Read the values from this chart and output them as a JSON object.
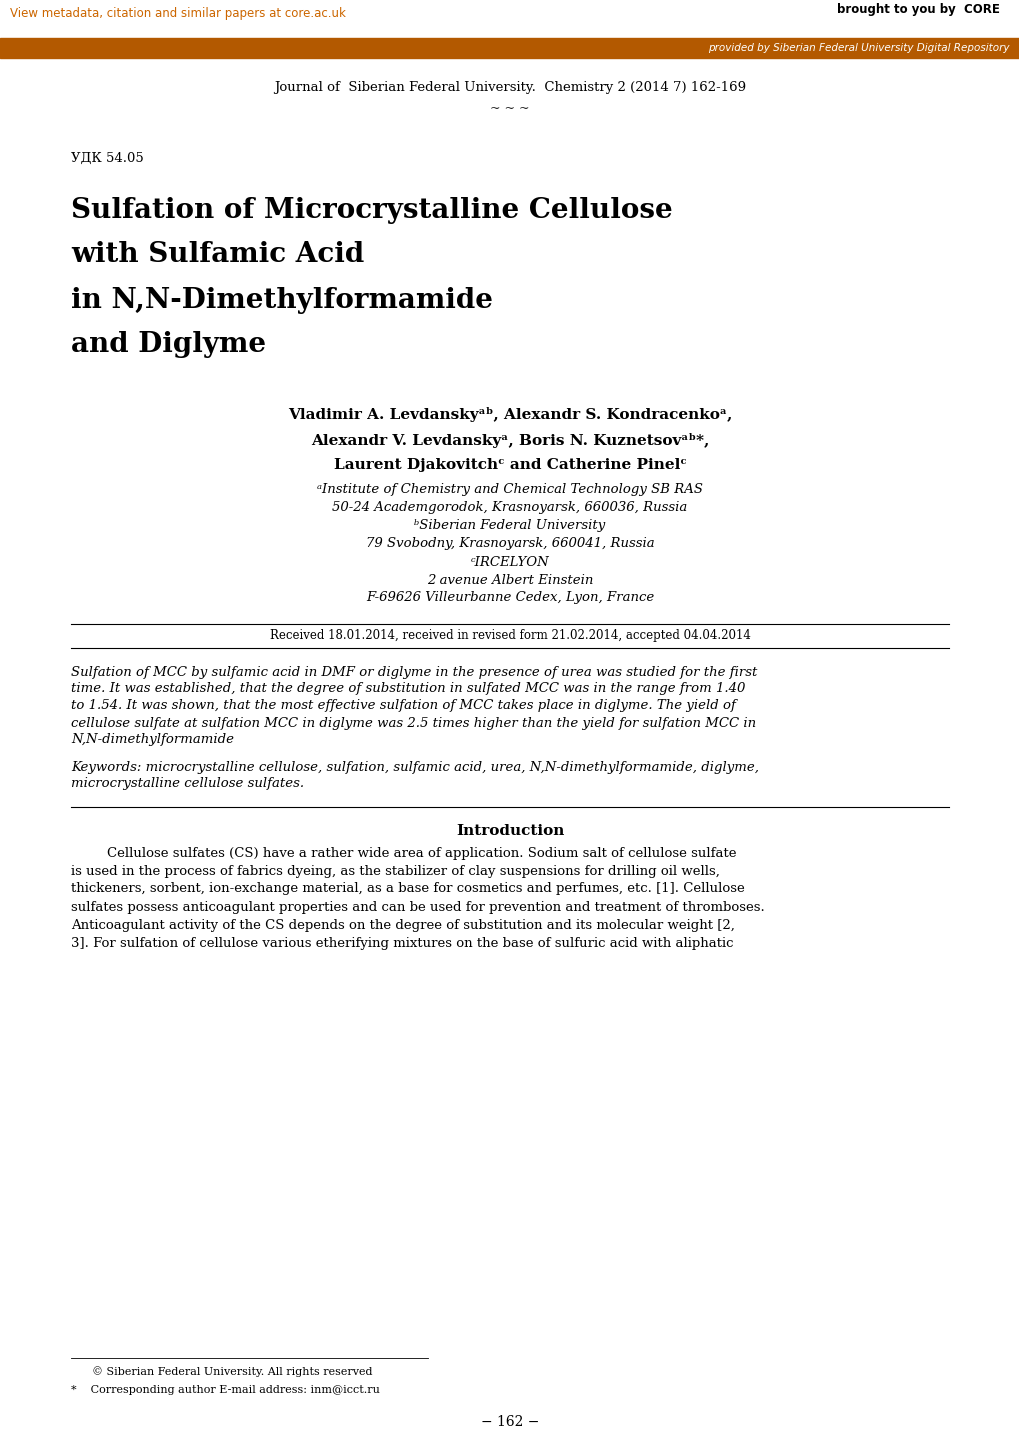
{
  "page_bg": "#ffffff",
  "header_bar_color": "#b35900",
  "header_text_top": "View metadata, citation and similar papers at core.ac.uk",
  "header_text_top_color": "#cc6600",
  "header_text_right": "brought to you by  CORE",
  "header_text_right_color": "#000000",
  "header_bar_text": "provided by Siberian Federal University Digital Repository",
  "header_bar_text_color": "#ffffff",
  "journal_line": "Journal of  Siberian Federal University.  Chemistry 2 (2014 7) 162-169",
  "tilde_line": "~ ~ ~",
  "udk_text": "УДК 54.05",
  "title_line1": "Sulfation of Microcrystalline Cellulose",
  "title_line2": "with Sulfamic Acid",
  "title_line3": "in N,N-Dimethylformamide",
  "title_line4": "and Diglyme",
  "author_line1": "Vladimir A. Levdanskyᵃᵇ, Alexandr S. Kondracenkoᵃ,",
  "author_line2": "Alexandr V. Levdanskyᵃ, Boris N. Kuznetsovᵃᵇ*,",
  "author_line3": "Laurent Djakovitchᶜ and Catherine Pinelᶜ",
  "affil_line1": "ᵃInstitute of Chemistry and Chemical Technology SB RAS",
  "affil_line2": "50-24 Academgorodok, Krasnoyarsk, 660036, Russia",
  "affil_line3": "ᵇSiberian Federal University",
  "affil_line4": "79 Svobodny, Krasnoyarsk, 660041, Russia",
  "affil_line5": "ᶜIRCELYON",
  "affil_line6": "2 avenue Albert Einstein",
  "affil_line7": "F-69626 Villeurbanne Cedex, Lyon, France",
  "received_text": "Received 18.01.2014, received in revised form 21.02.2014, accepted 04.04.2014",
  "abstract_lines": [
    "Sulfation of MCC by sulfamic acid in DMF or diglyme in the presence of urea was studied for the first",
    "time. It was established, that the degree of substitution in sulfated MCC was in the range from 1.40",
    "to 1.54. It was shown, that the most effective sulfation of MCC takes place in diglyme. The yield of",
    "cellulose sulfate at sulfation MCC in diglyme was 2.5 times higher than the yield for sulfation MCC in",
    "N,N-dimethylformamide"
  ],
  "keywords_lines": [
    "Keywords: microcrystalline cellulose, sulfation, sulfamic acid, urea, N,N-dimethylformamide, diglyme,",
    "microcrystalline cellulose sulfates."
  ],
  "section_title": "Introduction",
  "intro_lines": [
    "Cellulose sulfates (CS) have a rather wide area of application. Sodium salt of cellulose sulfate",
    "is used in the process of fabrics dyeing, as the stabilizer of clay suspensions for drilling oil wells,",
    "thickeners, sorbent, ion-exchange material, as a base for cosmetics and perfumes, etc. [1]. Cellulose",
    "sulfates possess anticoagulant properties and can be used for prevention and treatment of thromboses.",
    "Anticoagulant activity of the CS depends on the degree of substitution and its molecular weight [2,",
    "3]. For sulfation of cellulose various etherifying mixtures on the base of sulfuric acid with aliphatic"
  ],
  "footnote1": "© Siberian Federal University. All rights reserved",
  "footnote2": "*    Corresponding author E-mail address: inm@icct.ru",
  "page_num": "− 162 −"
}
